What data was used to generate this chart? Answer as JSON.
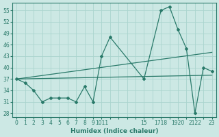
{
  "xlabel": "Humidex (Indice chaleur)",
  "ylim": [
    27,
    57
  ],
  "yticks": [
    28,
    31,
    34,
    37,
    40,
    43,
    46,
    49,
    52,
    55
  ],
  "bg_color": "#cce8e4",
  "grid_color": "#aad4ce",
  "line_color": "#2a7a6a",
  "x_tick_positions": [
    0,
    1,
    2,
    3,
    4,
    5,
    6,
    7,
    8,
    9,
    10,
    11,
    12,
    13,
    14,
    15,
    16,
    17,
    18,
    19,
    20,
    21,
    22,
    23
  ],
  "x_tick_labels": [
    "0",
    "1",
    "2",
    "3",
    "4",
    "5",
    "6",
    "7",
    "8",
    "9",
    "1011",
    "",
    "",
    "",
    "",
    "15",
    "",
    "1718",
    "",
    "1920",
    "",
    "2122",
    "",
    "23"
  ],
  "xlim": [
    -0.5,
    23.5
  ],
  "series1_x": [
    0,
    1,
    2,
    3,
    4,
    5,
    6,
    7,
    8,
    9,
    10,
    11,
    15,
    17,
    18,
    19,
    20,
    21,
    22,
    23
  ],
  "series1_y": [
    37,
    36,
    34,
    31,
    32,
    32,
    32,
    31,
    35,
    31,
    43,
    48,
    37,
    55,
    56,
    50,
    45,
    28,
    40,
    39
  ],
  "series2_x": [
    0,
    23
  ],
  "series2_y": [
    37,
    44
  ],
  "series3_x": [
    0,
    23
  ],
  "series3_y": [
    37,
    38
  ]
}
